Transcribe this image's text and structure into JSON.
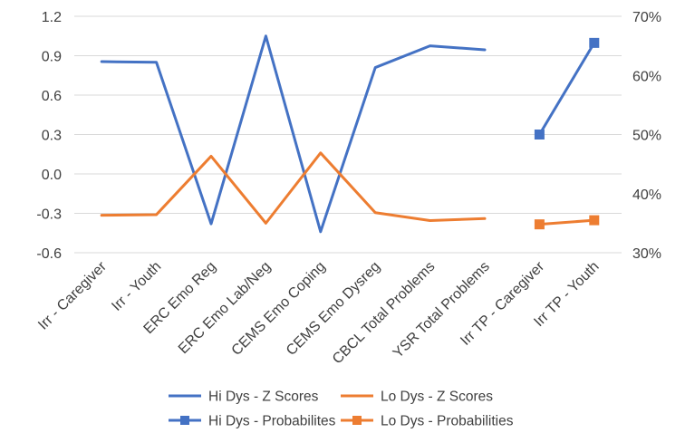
{
  "chart_data": {
    "type": "line",
    "title": "",
    "categories": [
      "Irr - Caregiver",
      "Irr - Youth",
      "ERC Emo Reg",
      "ERC Emo Lab/Neg",
      "CEMS Emo Coping",
      "CEMS Emo Dysreg",
      "CBCL Total Problems",
      "YSR Total Problems",
      "Irr TP - Caregiver",
      "Irr TP - Youth"
    ],
    "y_left": {
      "range": [
        -0.6,
        1.2
      ],
      "ticks": [
        -0.6,
        -0.3,
        0.0,
        0.3,
        0.6,
        0.9,
        1.2
      ],
      "tick_labels": [
        "-0.6",
        "-0.3",
        "0.0",
        "0.3",
        "0.6",
        "0.9",
        "1.2"
      ]
    },
    "y_right": {
      "range": [
        30,
        70
      ],
      "ticks": [
        30,
        40,
        50,
        60,
        70
      ],
      "tick_labels": [
        "30%",
        "40%",
        "50%",
        "60%",
        "70%"
      ]
    },
    "series": [
      {
        "name": "Hi Dys - Z Scores",
        "axis": "left",
        "color": "#4472C4",
        "marker": "none",
        "values": [
          0.855,
          0.85,
          -0.38,
          1.05,
          -0.44,
          0.81,
          0.975,
          0.945,
          null,
          null
        ]
      },
      {
        "name": "Lo Dys - Z Scores",
        "axis": "left",
        "color": "#ED7D31",
        "marker": "none",
        "values": [
          -0.315,
          -0.31,
          0.135,
          -0.375,
          0.16,
          -0.295,
          -0.355,
          -0.34,
          null,
          null
        ]
      },
      {
        "name": "Hi Dys - Probabilites",
        "axis": "right",
        "color": "#4472C4",
        "marker": "square",
        "values": [
          null,
          null,
          null,
          null,
          null,
          null,
          null,
          null,
          50,
          65.5
        ]
      },
      {
        "name": "Lo Dys - Probabilities",
        "axis": "right",
        "color": "#ED7D31",
        "marker": "square",
        "values": [
          null,
          null,
          null,
          null,
          null,
          null,
          null,
          null,
          34.8,
          35.5
        ]
      }
    ],
    "legend_position": "bottom",
    "gridlines": "horizontal"
  }
}
